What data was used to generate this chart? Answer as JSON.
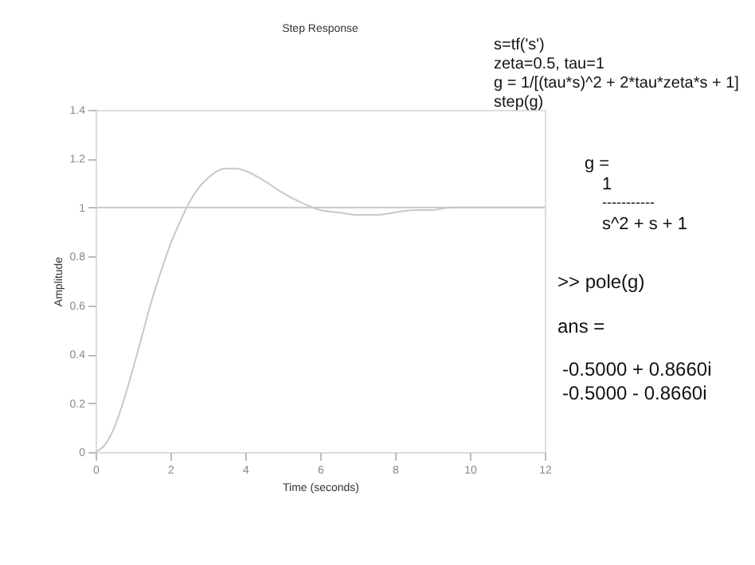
{
  "chart_data": {
    "type": "line",
    "title": "Step Response",
    "xlabel": "Time (seconds)",
    "ylabel": "Amplitude",
    "x": [
      0,
      0.25,
      0.5,
      0.75,
      1,
      1.25,
      1.5,
      1.75,
      2,
      2.25,
      2.5,
      2.75,
      3,
      3.25,
      3.5,
      3.75,
      4,
      4.5,
      5,
      5.5,
      6,
      6.5,
      7,
      7.5,
      8,
      8.5,
      9,
      9.5,
      10,
      11,
      12
    ],
    "series": [
      {
        "color": "#c8c8c8",
        "values": [
          0,
          0.03,
          0.1,
          0.21,
          0.34,
          0.48,
          0.62,
          0.74,
          0.85,
          0.94,
          1.02,
          1.08,
          1.12,
          1.15,
          1.16,
          1.16,
          1.15,
          1.11,
          1.06,
          1.02,
          0.99,
          0.98,
          0.97,
          0.97,
          0.98,
          0.99,
          0.99,
          1.0,
          1.0,
          1.0,
          1.0
        ]
      }
    ],
    "xlim": [
      0,
      12
    ],
    "xticks": [
      0,
      2,
      4,
      6,
      8,
      10,
      12
    ],
    "ylim": [
      0,
      1.4
    ],
    "yticks": [
      0,
      0.2,
      0.4,
      0.6,
      0.8,
      1,
      1.2,
      1.4
    ],
    "ref_lines": [
      {
        "axis": "y",
        "value": 1,
        "color": "#c8c8c8"
      }
    ],
    "grid": false,
    "annotations": [
      "s=tf('s')",
      "zeta=0.5, tau=1",
      "g = 1/[(tau*s)^2 + 2*tau*zeta*s + 1]",
      "step(g)",
      "g =",
      "1",
      "-----------",
      "s^2 + s + 1",
      ">> pole(g)",
      "ans =",
      "-0.5000 + 0.8660i",
      "-0.5000 - 0.8660i"
    ]
  }
}
